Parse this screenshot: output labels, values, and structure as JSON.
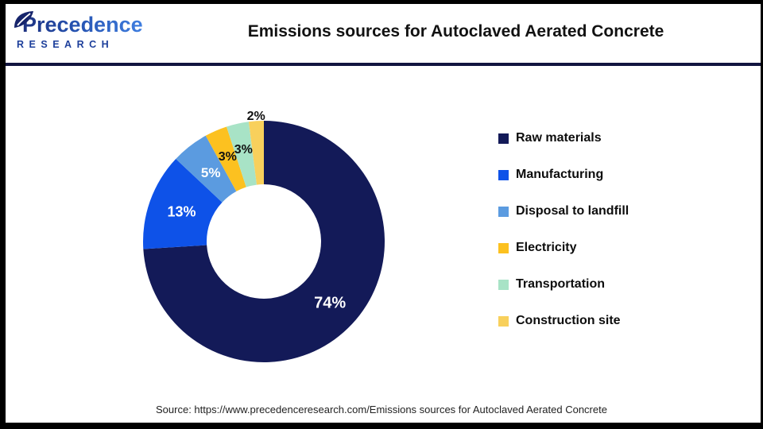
{
  "logo": {
    "name": "Precedence",
    "subtitle": "RESEARCH"
  },
  "header": {
    "title": "Emissions sources for Autoclaved Aerated Concrete"
  },
  "footer": {
    "source": "Source: https://www.precedenceresearch.com/Emissions sources for Autoclaved Aerated Concrete"
  },
  "colors": {
    "divider": "#121540",
    "frame": "#000000",
    "title_text": "#121212",
    "logo_dark_blue": "#1c2c78",
    "logo_light_blue": "#3f7ee0"
  },
  "chart_data": {
    "type": "pie",
    "subtype": "donut",
    "title": "Emissions sources for Autoclaved Aerated Concrete",
    "categories": [
      "Raw materials",
      "Manufacturing",
      "Disposal to landfill",
      "Electricity",
      "Transportation",
      "Construction site"
    ],
    "values": [
      74,
      13,
      5,
      3,
      3,
      2
    ],
    "series": [
      {
        "label": "Raw materials",
        "value": 74,
        "display": "74%",
        "color": "#131A58"
      },
      {
        "label": "Manufacturing",
        "value": 13,
        "display": "13%",
        "color": "#0E52E8"
      },
      {
        "label": "Disposal to landfill",
        "value": 5,
        "display": "5%",
        "color": "#5B9BE0"
      },
      {
        "label": "Electricity",
        "value": 3,
        "display": "3%",
        "color": "#FCC120"
      },
      {
        "label": "Transportation",
        "value": 3,
        "display": "3%",
        "color": "#A8E3C6"
      },
      {
        "label": "Construction site",
        "value": 2,
        "display": "2%",
        "color": "#F8D05C"
      }
    ],
    "start_angle_deg": 0,
    "direction": "clockwise",
    "inner_radius_ratio": 0.474,
    "legend_position": "right",
    "label_layout": {
      "radii": [
        114,
        110,
        109,
        115,
        118,
        157
      ],
      "text_colors": [
        "#ffffff",
        "#ffffff",
        "#ffffff",
        "#111111",
        "#111111",
        "#111111"
      ],
      "font_sizes": [
        20,
        18,
        17,
        16,
        16,
        16
      ]
    }
  }
}
